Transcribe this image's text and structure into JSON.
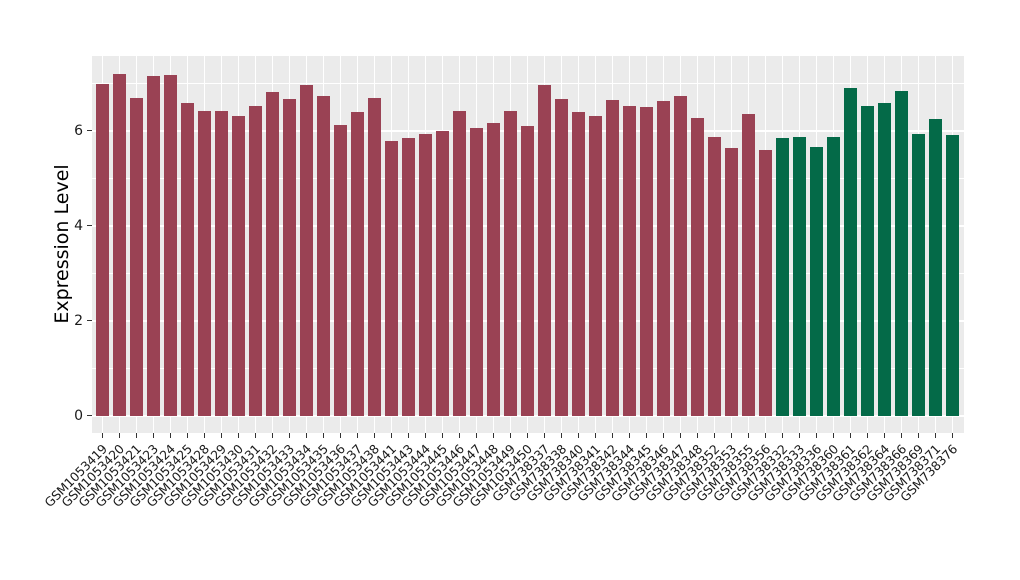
{
  "chart_data": {
    "type": "bar",
    "title": "",
    "xlabel": "",
    "ylabel": "Expression Level",
    "ylim": [
      0,
      7.5
    ],
    "yticks": [
      0,
      2,
      4,
      6
    ],
    "minor_gridlines": [
      1,
      3,
      5,
      7
    ],
    "grid": true,
    "legend_position": "none",
    "categories": [
      "GSM1053419",
      "GSM1053420",
      "GSM1053421",
      "GSM1053423",
      "GSM1053424",
      "GSM1053425",
      "GSM1053428",
      "GSM1053429",
      "GSM1053430",
      "GSM1053431",
      "GSM1053432",
      "GSM1053433",
      "GSM1053434",
      "GSM1053435",
      "GSM1053436",
      "GSM1053437",
      "GSM1053438",
      "GSM1053441",
      "GSM1053443",
      "GSM1053444",
      "GSM1053445",
      "GSM1053446",
      "GSM1053447",
      "GSM1053448",
      "GSM1053449",
      "GSM1053450",
      "GSM738337",
      "GSM738338",
      "GSM738340",
      "GSM738341",
      "GSM738342",
      "GSM738344",
      "GSM738345",
      "GSM738346",
      "GSM738347",
      "GSM738348",
      "GSM738352",
      "GSM738353",
      "GSM738355",
      "GSM738356",
      "GSM738332",
      "GSM738333",
      "GSM738336",
      "GSM738360",
      "GSM738361",
      "GSM738362",
      "GSM738364",
      "GSM738366",
      "GSM738369",
      "GSM738371",
      "GSM738376"
    ],
    "values": [
      6.99,
      7.19,
      6.69,
      7.16,
      7.17,
      6.58,
      6.41,
      6.41,
      6.32,
      6.53,
      6.81,
      6.67,
      6.97,
      6.74,
      6.13,
      6.4,
      6.69,
      5.78,
      5.84,
      5.93,
      5.99,
      6.41,
      6.05,
      6.16,
      6.42,
      6.1,
      6.97,
      6.67,
      6.39,
      6.31,
      6.64,
      6.52,
      6.49,
      6.62,
      6.73,
      6.26,
      5.86,
      5.63,
      6.35,
      5.59,
      5.85,
      5.87,
      5.65,
      5.87,
      6.89,
      6.52,
      6.58,
      6.84,
      5.93,
      6.25,
      5.91
    ],
    "groups": [
      "group1",
      "group1",
      "group1",
      "group1",
      "group1",
      "group1",
      "group1",
      "group1",
      "group1",
      "group1",
      "group1",
      "group1",
      "group1",
      "group1",
      "group1",
      "group1",
      "group1",
      "group1",
      "group1",
      "group1",
      "group1",
      "group1",
      "group1",
      "group1",
      "group1",
      "group1",
      "group1",
      "group1",
      "group1",
      "group1",
      "group1",
      "group1",
      "group1",
      "group1",
      "group1",
      "group1",
      "group1",
      "group1",
      "group1",
      "group1",
      "group2",
      "group2",
      "group2",
      "group2",
      "group2",
      "group2",
      "group2",
      "group2",
      "group2",
      "group2",
      "group2"
    ],
    "group_colors": {
      "group1": "#9A4254",
      "group2": "#046A48"
    },
    "colors": {
      "panel_background": "#EBEBEB",
      "gridline": "#FFFFFF",
      "tick_mark": "#333333",
      "axis_text": "#1A1A1A",
      "figure_background": "#FFFFFF"
    }
  }
}
